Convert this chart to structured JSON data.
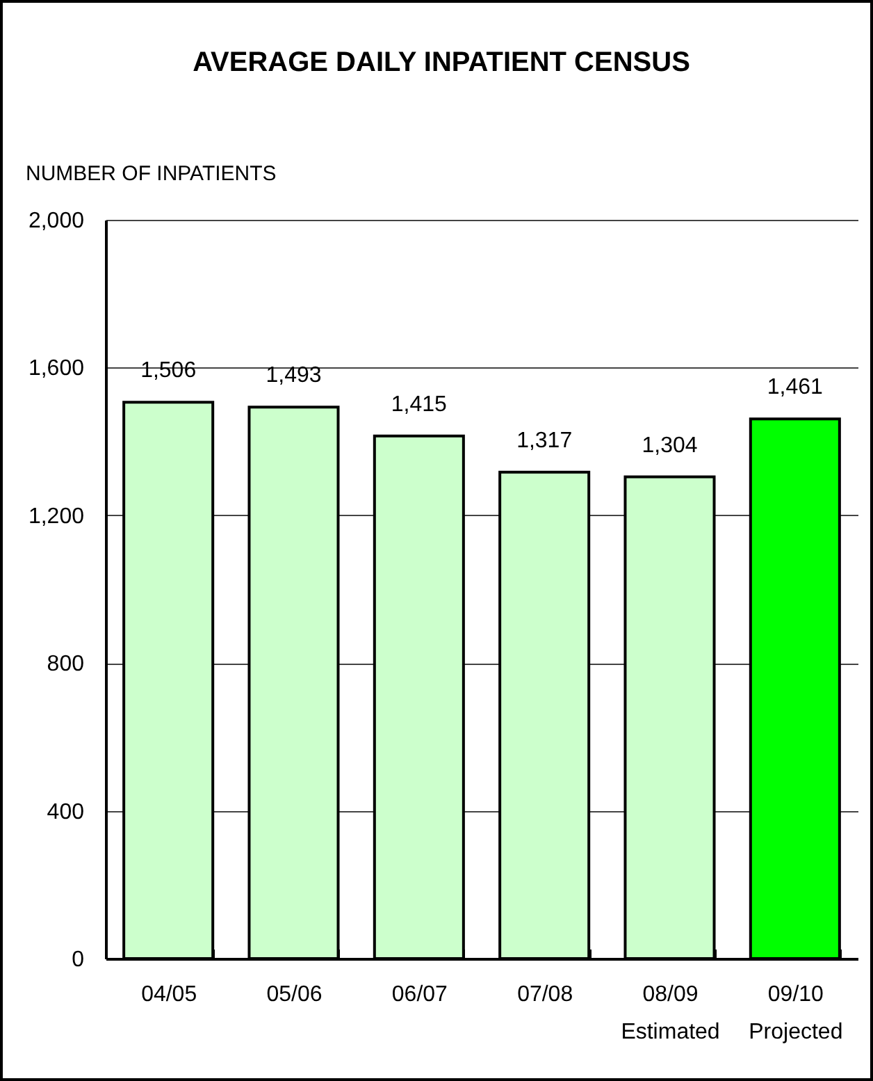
{
  "chart_data": {
    "type": "bar",
    "title": "AVERAGE DAILY INPATIENT CENSUS",
    "ylabel": "NUMBER OF INPATIENTS",
    "categories": [
      "04/05",
      "05/06",
      "06/07",
      "07/08",
      "08/09\nEstimated",
      "09/10\nProjected"
    ],
    "values": [
      1506,
      1493,
      1415,
      1317,
      1304,
      1461
    ],
    "value_labels": [
      "1,506",
      "1,493",
      "1,415",
      "1,317",
      "1,304",
      "1,461"
    ],
    "colors": [
      "#ccffcc",
      "#ccffcc",
      "#ccffcc",
      "#ccffcc",
      "#ccffcc",
      "#00ff00"
    ],
    "ylim": [
      0,
      2000
    ],
    "yticks": [
      0,
      400,
      800,
      {
        "value": 1200,
        "label": "1,200"
      },
      {
        "value": 1600,
        "label": "1,600"
      },
      {
        "value": 2000,
        "label": "2,000"
      }
    ],
    "grid": "y"
  }
}
